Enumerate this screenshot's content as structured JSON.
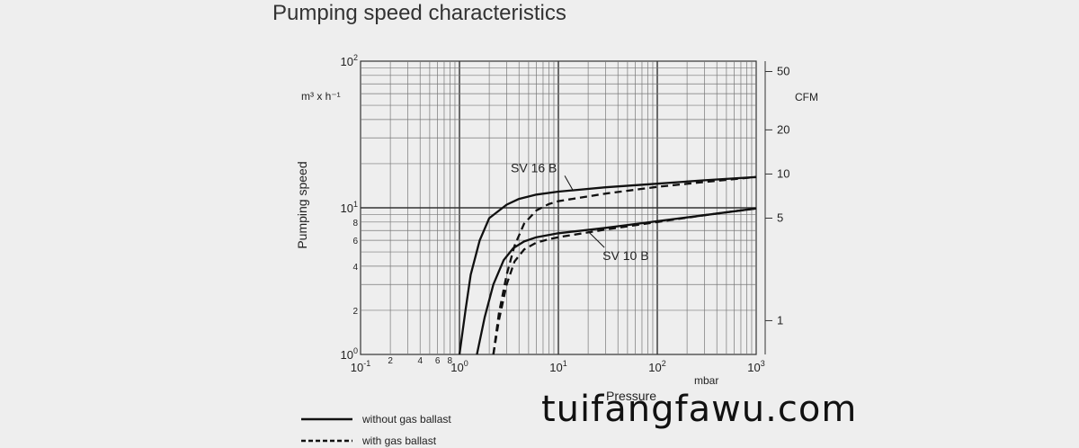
{
  "chart_data": {
    "type": "line",
    "title": "Pumping speed characteristics",
    "xlabel": "Pressure",
    "x_unit": "mbar",
    "ylabel": "Pumping speed",
    "y_unit": "m³ x h⁻¹",
    "y2_unit": "CFM",
    "x_scale": "log",
    "y_scale": "log",
    "xlim": [
      0.1,
      1000
    ],
    "ylim": [
      1,
      100
    ],
    "grid": true,
    "x_major_ticks": [
      {
        "value": 0.1,
        "base": "10",
        "exp": "-1"
      },
      {
        "value": 1,
        "base": "10",
        "exp": "0"
      },
      {
        "value": 10,
        "base": "10",
        "exp": "1"
      },
      {
        "value": 100,
        "base": "10",
        "exp": "2"
      },
      {
        "value": 1000,
        "base": "10",
        "exp": "3"
      }
    ],
    "x_minor_labels": [
      {
        "value": 0.2,
        "label": "2"
      },
      {
        "value": 0.4,
        "label": "4"
      },
      {
        "value": 0.6,
        "label": "6"
      },
      {
        "value": 0.8,
        "label": "8"
      }
    ],
    "y_major_ticks": [
      {
        "value": 1,
        "base": "10",
        "exp": "0"
      },
      {
        "value": 10,
        "base": "10",
        "exp": "1"
      },
      {
        "value": 100,
        "base": "10",
        "exp": "2"
      }
    ],
    "y_minor_labels": [
      {
        "value": 2,
        "label": "2"
      },
      {
        "value": 4,
        "label": "4"
      },
      {
        "value": 6,
        "label": "6"
      },
      {
        "value": 8,
        "label": "8"
      }
    ],
    "y2_ticks": [
      {
        "value": 1.7,
        "label": "1"
      },
      {
        "value": 8.5,
        "label": "5"
      },
      {
        "value": 17,
        "label": "10"
      },
      {
        "value": 34,
        "label": "20"
      },
      {
        "value": 85,
        "label": "50"
      }
    ],
    "series": [
      {
        "name": "SV 16 B",
        "style": "solid",
        "x": [
          1.0,
          1.15,
          1.3,
          1.6,
          2.0,
          3.0,
          4.0,
          6.0,
          10,
          30,
          100,
          300,
          1000
        ],
        "y": [
          1.0,
          2.0,
          3.5,
          6.0,
          8.5,
          10.5,
          11.5,
          12.3,
          12.9,
          13.8,
          14.6,
          15.4,
          16.2
        ]
      },
      {
        "name": "SV 16 B",
        "style": "dashed",
        "x": [
          2.2,
          2.5,
          3.0,
          3.6,
          4.5,
          6.0,
          8.0,
          10,
          30,
          100,
          300,
          1000
        ],
        "y": [
          1.0,
          1.9,
          3.5,
          5.5,
          7.8,
          9.6,
          10.6,
          11.1,
          12.5,
          13.9,
          15.0,
          16.2
        ]
      },
      {
        "name": "SV 10 B",
        "style": "solid",
        "x": [
          1.5,
          1.8,
          2.2,
          2.8,
          3.5,
          4.5,
          6.0,
          10,
          30,
          100,
          300,
          1000
        ],
        "y": [
          1.0,
          1.8,
          3.0,
          4.4,
          5.3,
          5.9,
          6.3,
          6.7,
          7.3,
          8.1,
          8.9,
          9.9
        ]
      },
      {
        "name": "SV 10 B",
        "style": "dashed",
        "x": [
          2.2,
          2.5,
          3.0,
          3.6,
          4.5,
          6.0,
          8.0,
          10,
          30,
          100,
          300,
          1000
        ],
        "y": [
          1.0,
          1.7,
          3.0,
          4.3,
          5.2,
          5.8,
          6.1,
          6.3,
          7.1,
          8.0,
          8.9,
          9.9
        ]
      }
    ],
    "annotations": [
      {
        "text": "SV 16 B",
        "x": 3.3,
        "y": 17.5,
        "point_x": 14,
        "point_y": 13.2
      },
      {
        "text": "SV 10 B",
        "x": 28,
        "y": 4.4,
        "point_x": 20,
        "point_y": 6.9
      }
    ],
    "legend": {
      "placement": "bottom-left",
      "entries": [
        {
          "label": "without gas ballast",
          "style": "solid"
        },
        {
          "label": "with gas ballast",
          "style": "dashed"
        }
      ]
    }
  },
  "watermark": "tuifangfawu.com"
}
